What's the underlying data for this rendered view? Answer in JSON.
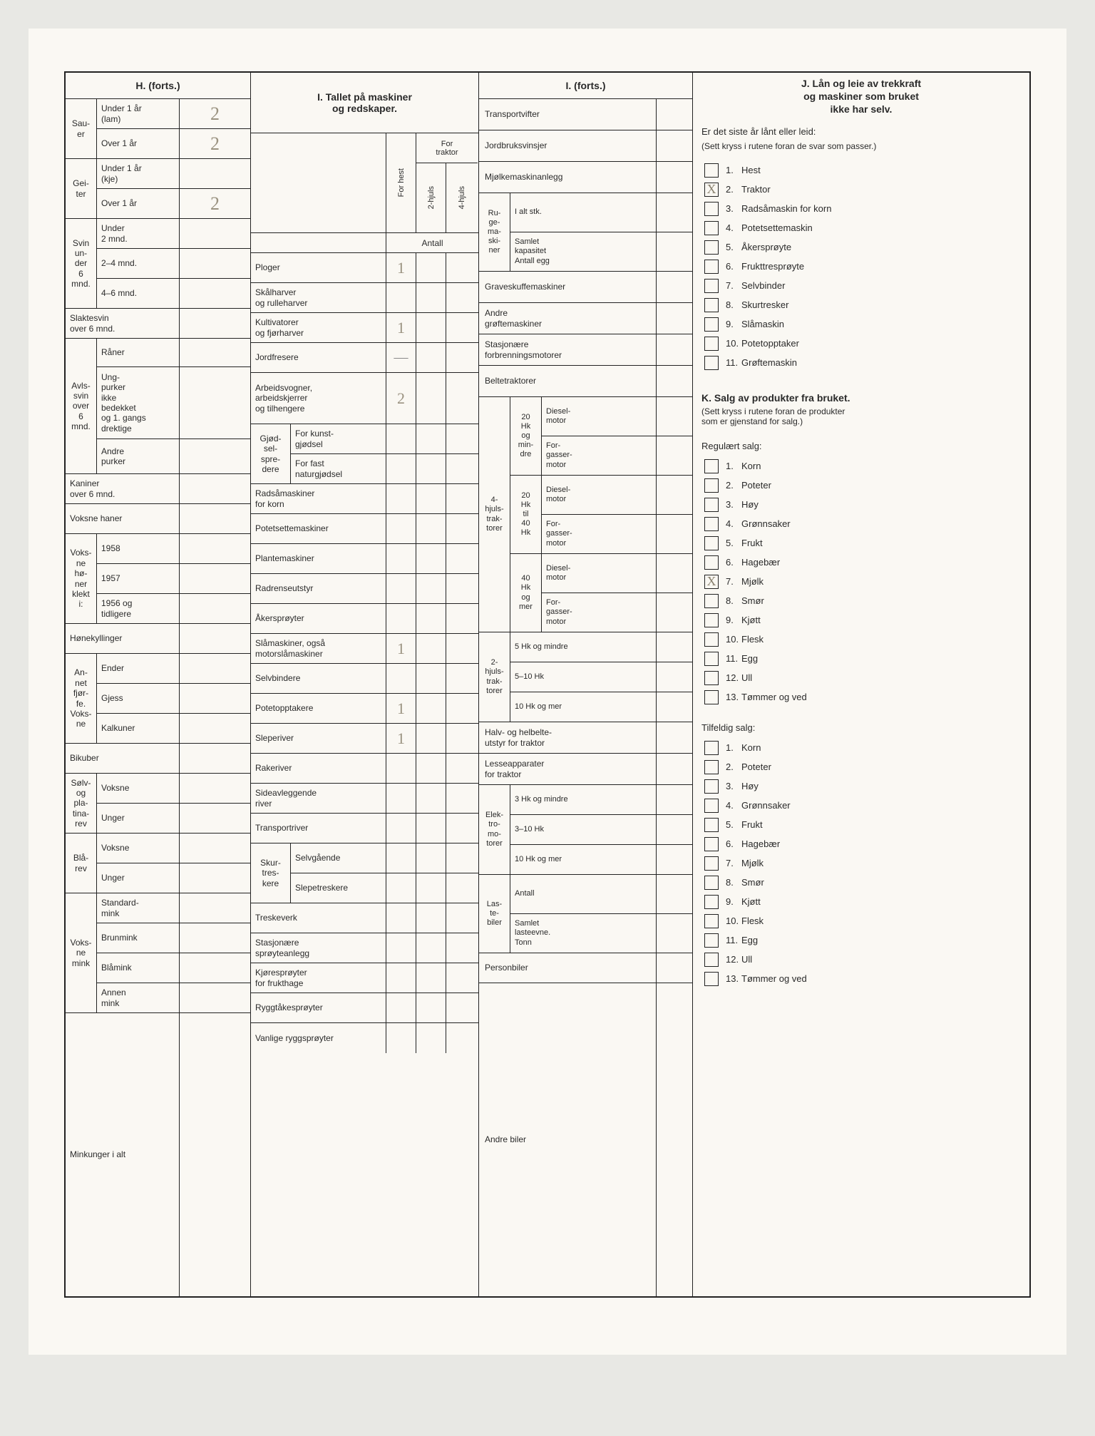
{
  "sectionH": {
    "title": "H. (forts.)",
    "sauer": {
      "label": "Sau-\ner",
      "r1": "Under 1 år\n(lam)",
      "v1": "2",
      "r2": "Over 1 år",
      "v2": "2"
    },
    "geiter": {
      "label": "Gei-\nter",
      "r1": "Under 1 år\n(kje)",
      "v1": "",
      "r2": "Over 1 år",
      "v2": "2"
    },
    "svin": {
      "label": "Svin\nun-\nder\n6\nmnd.",
      "r1": "Under\n2 mnd.",
      "r2": "2–4 mnd.",
      "r3": "4–6 mnd."
    },
    "slaktesvin": {
      "label": "Slaktesvin\nover 6 mnd."
    },
    "avlssvin": {
      "label": "Avls-\nsvin\nover\n6\nmnd.",
      "r1": "Råner",
      "r2": "Ung-\npurker\nikke\nbedekket\nog 1. gangs\ndrektige",
      "r3": "Andre\npurker"
    },
    "kaniner": "Kaniner\nover 6 mnd.",
    "haner": "Voksne haner",
    "honer": {
      "label": "Voks-\nne\nhø-\nner\nklekt\ni:",
      "r1": "1958",
      "r2": "1957",
      "r3": "1956 og\ntidligere"
    },
    "kyllinger": "Hønekyllinger",
    "fjorfe": {
      "label": "An-\nnet\nfjør-\nfe.\nVoks-\nne",
      "r1": "Ender",
      "r2": "Gjess",
      "r3": "Kalkuner"
    },
    "bikuber": "Bikuber",
    "solvrev": {
      "label": "Sølv-\nog\npla-\ntina-\nrev",
      "r1": "Voksne",
      "r2": "Unger"
    },
    "blarev": {
      "label": "Blå-\nrev",
      "r1": "Voksne",
      "r2": "Unger"
    },
    "mink": {
      "label": "Voks-\nne\nmink",
      "r1": "Standard-\nmink",
      "r2": "Brunmink",
      "r3": "Blåmink",
      "r4": "Annen\nmink"
    },
    "minkunger": "Minkunger i alt"
  },
  "sectionI": {
    "title": "I. Tallet på maskiner\nog redskaper.",
    "cols": {
      "forhest": "For hest",
      "traktor": "For\ntraktor",
      "tohjuls": "2-hjuls",
      "firehjuls": "4-hjuls",
      "antall": "Antall"
    },
    "rows": [
      {
        "l": "Ploger",
        "v": "1"
      },
      {
        "l": "Skålharver\nog rulleharver"
      },
      {
        "l": "Kultivatorer\nog fjørharver",
        "v": "1"
      },
      {
        "l": "Jordfresere",
        "dash": true
      },
      {
        "l": "Arbeidsvogner,\narbeidskjerrer\nog tilhengere",
        "v": "2",
        "tall": true
      },
      {
        "nested": true,
        "side": "Gjød-\nsel-\nspre-\ndere",
        "r1": "For kunst-\ngjødsel",
        "r2": "For fast\nnaturgjødsel"
      },
      {
        "l": "Radsåmaskiner\nfor korn"
      },
      {
        "l": "Potetsettemaskiner"
      },
      {
        "l": "Plantemaskiner"
      },
      {
        "l": "Radrenseutstyr"
      },
      {
        "l": "Åkersprøyter"
      },
      {
        "l": "Slåmaskiner, også\nmotorslåmaskiner",
        "v": "1"
      },
      {
        "l": "Selvbindere"
      },
      {
        "l": "Potetopptakere",
        "v": "1"
      },
      {
        "l": "Sleperiver",
        "v": "1"
      },
      {
        "l": "Rakeriver"
      },
      {
        "l": "Sideavleggende\nriver"
      },
      {
        "l": "Transportriver"
      },
      {
        "nested": true,
        "side": "Skur-\ntres-\nkere",
        "r1": "Selvgående",
        "r2": "Slepetreskere"
      },
      {
        "l": "Treskeverk"
      },
      {
        "l": "Stasjonære\nsprøyteanlegg"
      },
      {
        "l": "Kjøresprøyter\nfor frukthage"
      },
      {
        "l": "Ryggtåkesprøyter"
      },
      {
        "l": "Vanlige ryggsprøyter"
      }
    ]
  },
  "sectionI2": {
    "title": "I. (forts.)",
    "rows_top": [
      "Transportvifter",
      "Jordbruksvinsjer",
      "Mjølkemaskinanlegg"
    ],
    "ruge": {
      "label": "Ru-\nge-\nma-\nski-\nner",
      "r1": "I alt stk.",
      "r2": "Samlet\nkapasitet\nAntall egg"
    },
    "rows_mid": [
      "Graveskuffemaskiner",
      "Andre\ngrøftemaskiner",
      "Stasjonære\nforbrenningsmotorer",
      "Beltetraktorer"
    ],
    "traktor4": {
      "label": "4-\nhjuls-\ntrak-\ntorer",
      "g1": "20\nHk\nog\nmin-\ndre",
      "g2": "20\nHk\ntil\n40\nHk",
      "g3": "40\nHk\nog\nmer",
      "diesel": "Diesel-\nmotor",
      "forgasser": "For-\ngasser-\nmotor"
    },
    "traktor2": {
      "label": "2-\nhjuls-\ntrak-\ntorer",
      "r1": "5 Hk og mindre",
      "r2": "5–10 Hk",
      "r3": "10 Hk og mer"
    },
    "halv": "Halv- og helbelte-\nutstyr for traktor",
    "lesse": "Lesseapparater\nfor traktor",
    "elektro": {
      "label": "Elek-\ntro-\nmo-\ntorer",
      "r1": "3 Hk og mindre",
      "r2": "3–10 Hk",
      "r3": "10 Hk og mer"
    },
    "laste": {
      "label": "Las-\nte-\nbiler",
      "r1": "Antall",
      "r2": "Samlet\nlasteevne.\nTonn"
    },
    "person": "Personbiler",
    "andre": "Andre biler"
  },
  "sectionJ": {
    "title": "J. Lån og leie av trekkraft\nog maskiner som bruket\nikke har selv.",
    "sub": "Er det siste år lånt eller leid:",
    "note": "(Sett kryss i rutene foran de svar som passer.)",
    "items": [
      {
        "n": "1.",
        "t": "Hest"
      },
      {
        "n": "2.",
        "t": "Traktor",
        "x": true
      },
      {
        "n": "3.",
        "t": "Radsåmaskin for korn"
      },
      {
        "n": "4.",
        "t": "Potetsettemaskin"
      },
      {
        "n": "5.",
        "t": "Åkersprøyte"
      },
      {
        "n": "6.",
        "t": "Frukttresprøyte"
      },
      {
        "n": "7.",
        "t": "Selvbinder"
      },
      {
        "n": "8.",
        "t": "Skurtresker"
      },
      {
        "n": "9.",
        "t": "Slåmaskin"
      },
      {
        "n": "10.",
        "t": "Potetopptaker"
      },
      {
        "n": "11.",
        "t": "Grøftemaskin"
      }
    ]
  },
  "sectionK": {
    "title": "K. Salg av produkter fra bruket.",
    "note": "(Sett kryss i rutene foran de produkter\nsom er gjenstand for salg.)",
    "reg_label": "Regulært salg:",
    "reg": [
      {
        "n": "1.",
        "t": "Korn"
      },
      {
        "n": "2.",
        "t": "Poteter"
      },
      {
        "n": "3.",
        "t": "Høy"
      },
      {
        "n": "4.",
        "t": "Grønnsaker"
      },
      {
        "n": "5.",
        "t": "Frukt"
      },
      {
        "n": "6.",
        "t": "Hagebær"
      },
      {
        "n": "7.",
        "t": "Mjølk",
        "x": true
      },
      {
        "n": "8.",
        "t": "Smør"
      },
      {
        "n": "9.",
        "t": "Kjøtt"
      },
      {
        "n": "10.",
        "t": "Flesk"
      },
      {
        "n": "11.",
        "t": "Egg"
      },
      {
        "n": "12.",
        "t": "Ull"
      },
      {
        "n": "13.",
        "t": "Tømmer og ved"
      }
    ],
    "tilf_label": "Tilfeldig salg:",
    "tilf": [
      {
        "n": "1.",
        "t": "Korn"
      },
      {
        "n": "2.",
        "t": "Poteter"
      },
      {
        "n": "3.",
        "t": "Høy"
      },
      {
        "n": "4.",
        "t": "Grønnsaker"
      },
      {
        "n": "5.",
        "t": "Frukt"
      },
      {
        "n": "6.",
        "t": "Hagebær"
      },
      {
        "n": "7.",
        "t": "Mjølk"
      },
      {
        "n": "8.",
        "t": "Smør"
      },
      {
        "n": "9.",
        "t": "Kjøtt"
      },
      {
        "n": "10.",
        "t": "Flesk"
      },
      {
        "n": "11.",
        "t": "Egg"
      },
      {
        "n": "12.",
        "t": "Ull"
      },
      {
        "n": "13.",
        "t": "Tømmer og ved"
      }
    ]
  }
}
